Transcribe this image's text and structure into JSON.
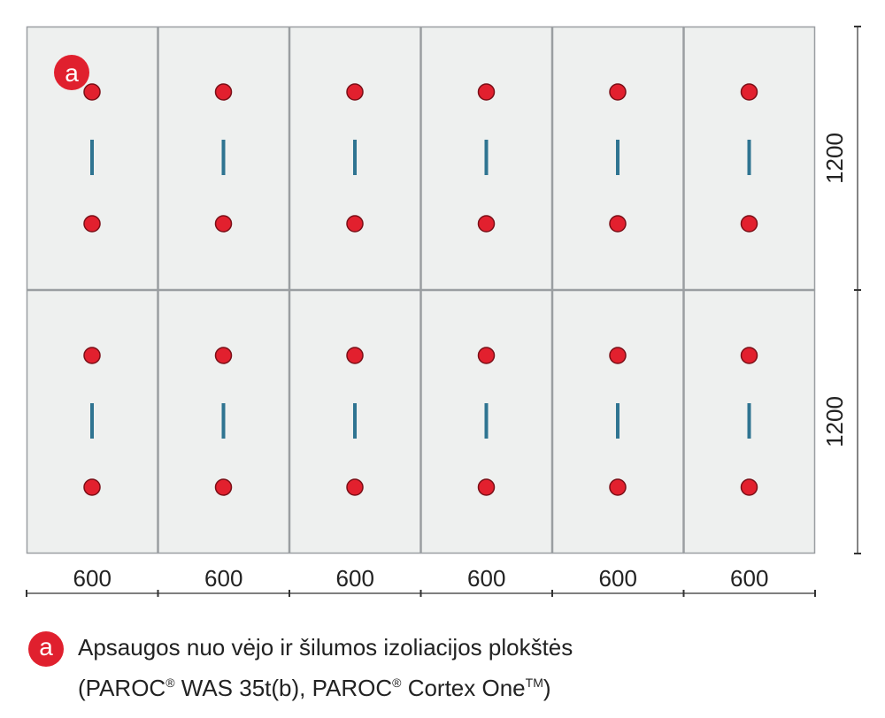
{
  "diagram": {
    "columns": 6,
    "rows": 2,
    "horizontal_dimensions": [
      "600",
      "600",
      "600",
      "600",
      "600",
      "600"
    ],
    "vertical_dimensions": [
      "1200",
      "1200"
    ],
    "marker_label": "a",
    "colors": {
      "board_fill": "#eef0ef",
      "board_border": "#9a9ea1",
      "fastener_fill": "#e2202e",
      "fastener_stroke": "#7a0f17",
      "joint_mark": "#2f7491",
      "marker_fill": "#e0202e",
      "dimension_line": "#333333"
    }
  },
  "legend": {
    "badge": "a",
    "line1": "Apsaugos nuo vėjo ir šilumos izoliacijos plokštės",
    "line2_part1": "(PAROC",
    "reg1": "®",
    "line2_part2": " WAS 35t(b), PAROC",
    "reg2": "®",
    "line2_part3": " Cortex One",
    "tm": "TM",
    "line2_part4": ")"
  }
}
